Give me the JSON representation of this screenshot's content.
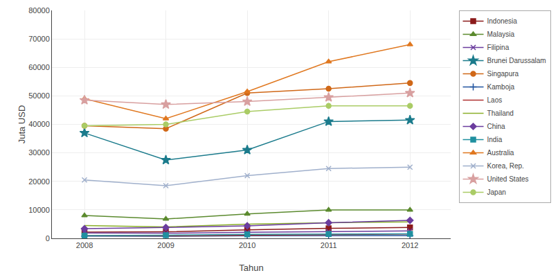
{
  "chart_data": {
    "type": "line",
    "x": [
      2008,
      2009,
      2010,
      2011,
      2012
    ],
    "series": [
      {
        "name": "Indonesia",
        "color": "#8B1A1A",
        "marker": "square",
        "values": [
          2200,
          2300,
          3000,
          3500,
          3800
        ]
      },
      {
        "name": "Malaysia",
        "color": "#5B8A2E",
        "marker": "triangle-up",
        "values": [
          8000,
          6800,
          8600,
          10000,
          10000
        ]
      },
      {
        "name": "Filipina",
        "color": "#6B3D9E",
        "marker": "x",
        "values": [
          1900,
          1800,
          2100,
          2400,
          2600
        ]
      },
      {
        "name": "Brunei Darussalam",
        "color": "#1B7B8C",
        "marker": "star",
        "values": [
          37000,
          27500,
          31000,
          41000,
          41500
        ]
      },
      {
        "name": "Singapura",
        "color": "#D06818",
        "marker": "circle",
        "values": [
          39500,
          38500,
          51000,
          52500,
          54500
        ]
      },
      {
        "name": "Kamboja",
        "color": "#2255A0",
        "marker": "plus",
        "values": [
          800,
          700,
          900,
          1000,
          1000
        ]
      },
      {
        "name": "Laos",
        "color": "#B03030",
        "values": [
          900,
          900,
          1100,
          1300,
          1500
        ]
      },
      {
        "name": "Thailand",
        "color": "#8AAF2A",
        "values": [
          4500,
          4000,
          5000,
          5500,
          5800
        ]
      },
      {
        "name": "China",
        "color": "#6B3D9E",
        "marker": "diamond",
        "values": [
          3400,
          3800,
          4400,
          5500,
          6300
        ]
      },
      {
        "name": "India",
        "color": "#2090A0",
        "marker": "square",
        "values": [
          1000,
          1100,
          1400,
          1500,
          1600
        ]
      },
      {
        "name": "Australia",
        "color": "#E07820",
        "marker": "triangle-up",
        "values": [
          49000,
          42000,
          51500,
          62000,
          68000
        ]
      },
      {
        "name": "Korea, Rep.",
        "color": "#A0B0CC",
        "marker": "x",
        "values": [
          20500,
          18500,
          22000,
          24500,
          25000
        ]
      },
      {
        "name": "United States",
        "color": "#D8A0A0",
        "marker": "star",
        "values": [
          48500,
          47000,
          48000,
          49500,
          51000
        ]
      },
      {
        "name": "Japan",
        "color": "#AACC66",
        "marker": "circle",
        "values": [
          39500,
          40000,
          44500,
          46500,
          46500
        ]
      }
    ],
    "xlabel": "Tahun",
    "ylabel": "Juta USD",
    "xlim": [
      2007.6,
      2012.5
    ],
    "xticks": [
      2008,
      2009,
      2010,
      2011,
      2012
    ],
    "ylim": [
      0,
      80000
    ],
    "yticks": [
      0,
      10000,
      20000,
      30000,
      40000,
      50000,
      60000,
      70000,
      80000
    ],
    "grid": true,
    "legend": "right"
  }
}
